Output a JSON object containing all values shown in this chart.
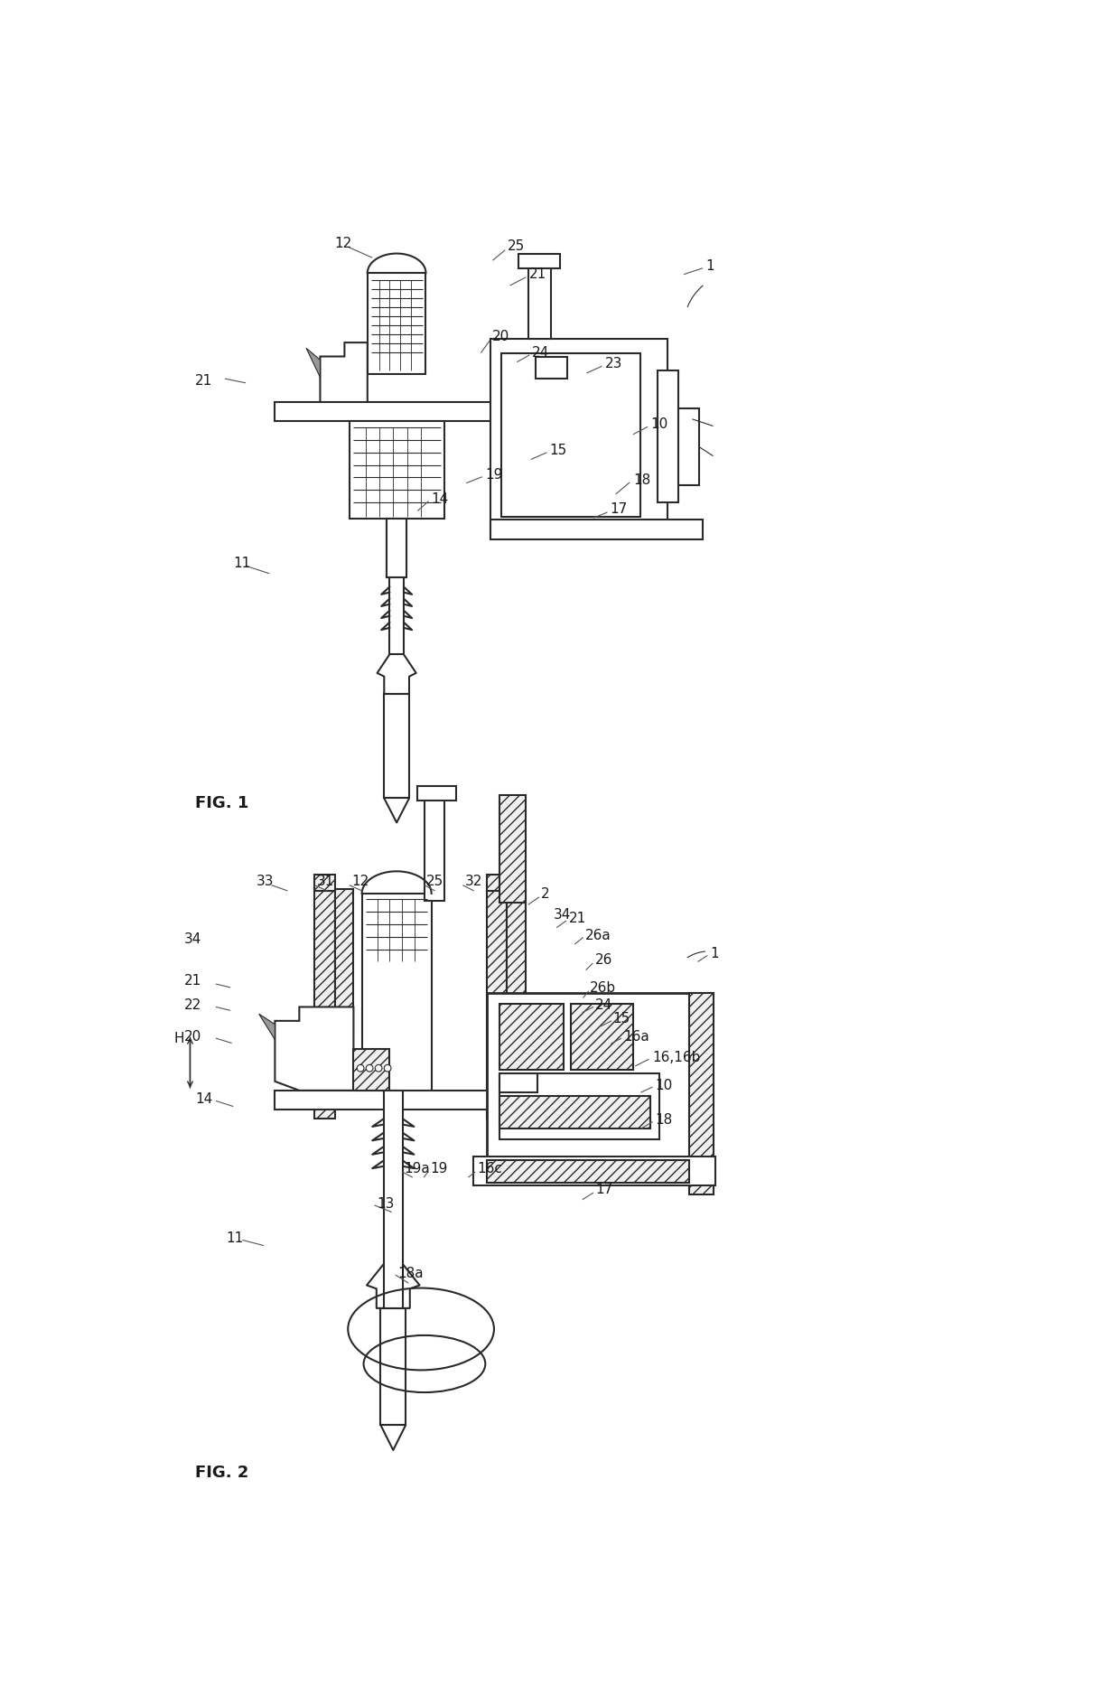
{
  "title": "",
  "fig1_label": "FIG. 1",
  "fig2_label": "FIG. 2",
  "background_color": "#ffffff",
  "line_color": "#2a2a2a",
  "fig1_labels": [
    [
      "12",
      300,
      58,
      "right"
    ],
    [
      "25",
      525,
      62,
      "left"
    ],
    [
      "21",
      555,
      102,
      "left"
    ],
    [
      "21 ",
      100,
      255,
      "right"
    ],
    [
      "20",
      502,
      192,
      "left"
    ],
    [
      "24",
      560,
      215,
      "left"
    ],
    [
      "23",
      665,
      230,
      "left"
    ],
    [
      "10",
      730,
      318,
      "left"
    ],
    [
      "15",
      585,
      355,
      "left"
    ],
    [
      "19",
      492,
      390,
      "left"
    ],
    [
      "18",
      705,
      398,
      "left"
    ],
    [
      "17",
      672,
      440,
      "left"
    ],
    [
      "14",
      415,
      425,
      "left"
    ],
    [
      "11",
      130,
      518,
      "left"
    ],
    [
      "1",
      810,
      90,
      "left"
    ]
  ],
  "fig2_labels": [
    [
      "33",
      188,
      975,
      "right"
    ],
    [
      "31",
      250,
      975,
      "left"
    ],
    [
      "12",
      300,
      975,
      "left"
    ],
    [
      "25",
      408,
      975,
      "left"
    ],
    [
      "32",
      463,
      975,
      "left"
    ],
    [
      "2",
      573,
      993,
      "left"
    ],
    [
      "34",
      85,
      1058,
      "right"
    ],
    [
      "34 ",
      591,
      1022,
      "left"
    ],
    [
      "21",
      613,
      1028,
      "left"
    ],
    [
      "26a",
      636,
      1052,
      "left"
    ],
    [
      "26",
      650,
      1088,
      "left"
    ],
    [
      "26b",
      643,
      1128,
      "left"
    ],
    [
      "21 ",
      85,
      1118,
      "right"
    ],
    [
      "22",
      85,
      1152,
      "right"
    ],
    [
      "24",
      650,
      1152,
      "left"
    ],
    [
      "15",
      676,
      1172,
      "left"
    ],
    [
      "16a",
      691,
      1198,
      "left"
    ],
    [
      "20",
      85,
      1198,
      "right"
    ],
    [
      "16,16b",
      733,
      1228,
      "left"
    ],
    [
      "10",
      736,
      1268,
      "left"
    ],
    [
      "14",
      100,
      1288,
      "right"
    ],
    [
      "18",
      736,
      1318,
      "left"
    ],
    [
      "19a",
      376,
      1388,
      "left"
    ],
    [
      "19",
      413,
      1388,
      "left"
    ],
    [
      "16c",
      481,
      1388,
      "left"
    ],
    [
      "13",
      336,
      1438,
      "left"
    ],
    [
      "11",
      120,
      1488,
      "left"
    ],
    [
      "17",
      651,
      1418,
      "left"
    ],
    [
      "18a",
      366,
      1538,
      "left"
    ],
    [
      "1",
      816,
      1078,
      "left"
    ],
    [
      "H",
      52,
      1200,
      "center"
    ]
  ]
}
